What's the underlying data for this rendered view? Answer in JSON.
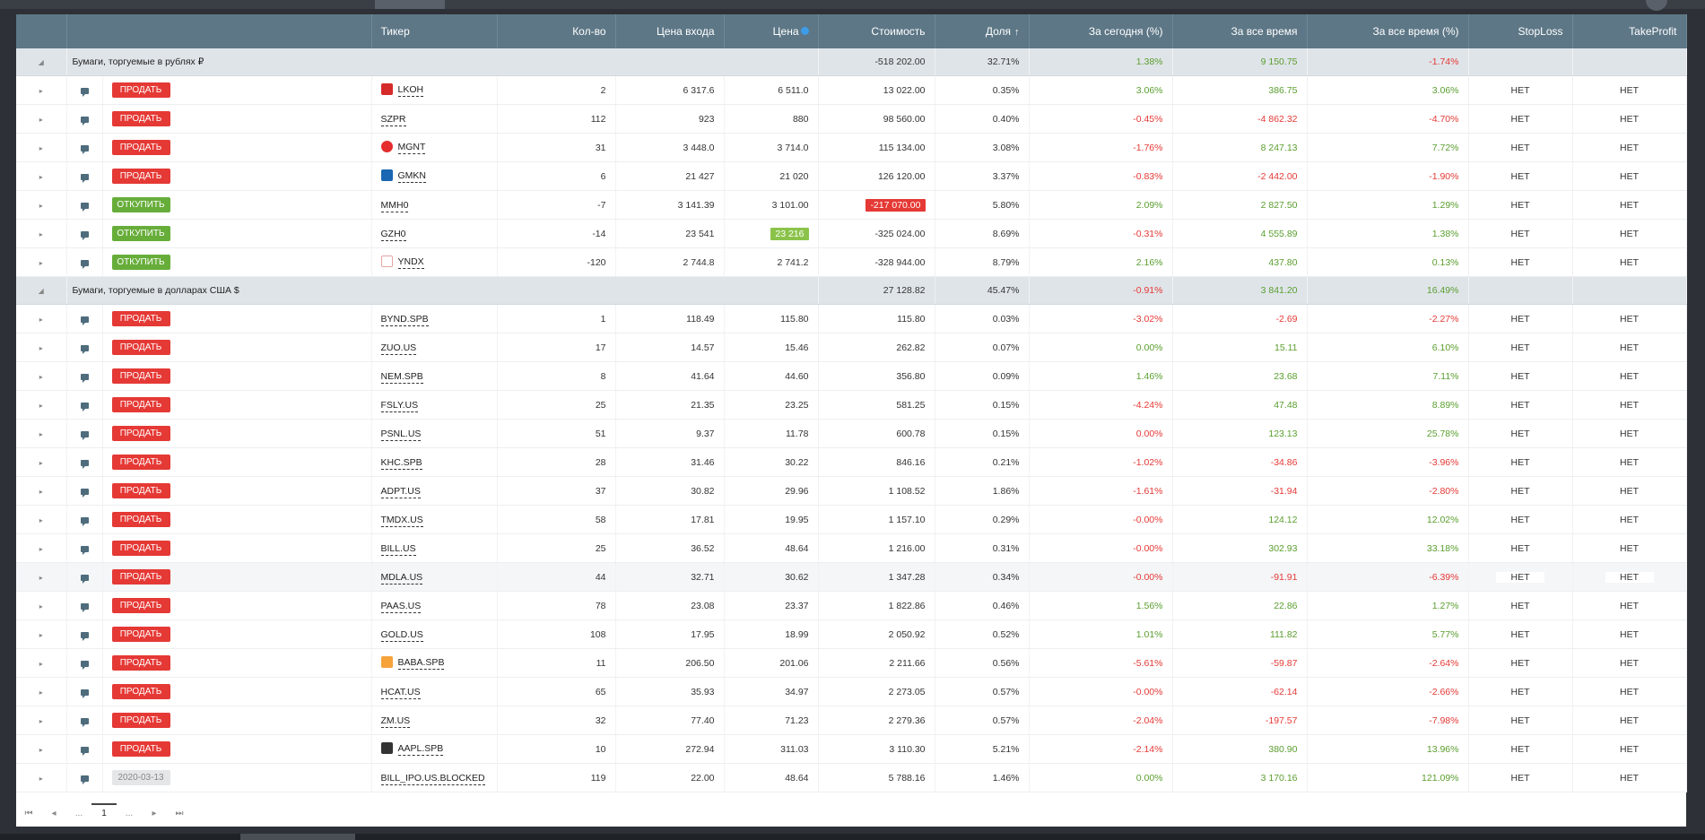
{
  "columns": {
    "ticker": "Тикер",
    "qty": "Кол-во",
    "entry_price": "Цена входа",
    "price": "Цена",
    "value": "Стоимость",
    "share": "Доля",
    "today": "За сегодня (%)",
    "all_time": "За все время",
    "all_time_pct": "За все время (%)",
    "stop_loss": "StopLoss",
    "take_profit": "TakeProfit"
  },
  "groups": [
    {
      "name": "Бумаги, торгуемые в рублях ₽",
      "value": "-518 202.00",
      "share": "32.71%",
      "today": "1.38%",
      "all_time": "9 150.75",
      "all_time_pct": "-1.74%",
      "today_sign": "pos",
      "all_time_sign": "pos",
      "all_time_pct_sign": "neg",
      "rows": [
        {
          "action": "ПРОДАТЬ",
          "action_type": "sell",
          "logo": "lkoh",
          "ticker": "LKOH",
          "qty": "2",
          "entry": "6 317.6",
          "price": "6 511.0",
          "value": "13 022.00",
          "share": "0.35%",
          "today": "3.06%",
          "all_time": "386.75",
          "all_time_pct": "3.06%",
          "today_sign": "pos",
          "all_time_sign": "pos",
          "all_time_pct_sign": "pos",
          "sl": "НЕТ",
          "tp": "НЕТ"
        },
        {
          "action": "ПРОДАТЬ",
          "action_type": "sell",
          "logo": "",
          "ticker": "SZPR",
          "qty": "112",
          "entry": "923",
          "price": "880",
          "value": "98 560.00",
          "share": "0.40%",
          "today": "-0.45%",
          "all_time": "-4 862.32",
          "all_time_pct": "-4.70%",
          "today_sign": "neg",
          "all_time_sign": "neg",
          "all_time_pct_sign": "neg",
          "sl": "НЕТ",
          "tp": "НЕТ"
        },
        {
          "action": "ПРОДАТЬ",
          "action_type": "sell",
          "logo": "mgnt",
          "ticker": "MGNT",
          "qty": "31",
          "entry": "3 448.0",
          "price": "3 714.0",
          "value": "115 134.00",
          "share": "3.08%",
          "today": "-1.76%",
          "all_time": "8 247.13",
          "all_time_pct": "7.72%",
          "today_sign": "neg",
          "all_time_sign": "pos",
          "all_time_pct_sign": "pos",
          "sl": "НЕТ",
          "tp": "НЕТ"
        },
        {
          "action": "ПРОДАТЬ",
          "action_type": "sell",
          "logo": "gmkn",
          "ticker": "GMKN",
          "qty": "6",
          "entry": "21 427",
          "price": "21 020",
          "value": "126 120.00",
          "share": "3.37%",
          "today": "-0.83%",
          "all_time": "-2 442.00",
          "all_time_pct": "-1.90%",
          "today_sign": "neg",
          "all_time_sign": "neg",
          "all_time_pct_sign": "neg",
          "sl": "НЕТ",
          "tp": "НЕТ"
        },
        {
          "action": "ОТКУПИТЬ",
          "action_type": "buy",
          "logo": "",
          "ticker": "MMH0",
          "qty": "-7",
          "entry": "3 141.39",
          "price": "3 101.00",
          "value": "-217 070.00",
          "value_badge": "red",
          "share": "5.80%",
          "today": "2.09%",
          "all_time": "2 827.50",
          "all_time_pct": "1.29%",
          "today_sign": "pos",
          "all_time_sign": "pos",
          "all_time_pct_sign": "pos",
          "sl": "НЕТ",
          "tp": "НЕТ"
        },
        {
          "action": "ОТКУПИТЬ",
          "action_type": "buy",
          "logo": "",
          "ticker": "GZH0",
          "qty": "-14",
          "entry": "23 541",
          "price": "23 216",
          "price_badge": "green",
          "value": "-325 024.00",
          "share": "8.69%",
          "today": "-0.31%",
          "all_time": "4 555.89",
          "all_time_pct": "1.38%",
          "today_sign": "neg",
          "all_time_sign": "pos",
          "all_time_pct_sign": "pos",
          "sl": "НЕТ",
          "tp": "НЕТ"
        },
        {
          "action": "ОТКУПИТЬ",
          "action_type": "buy",
          "logo": "yndx",
          "ticker": "YNDX",
          "qty": "-120",
          "entry": "2 744.8",
          "price": "2 741.2",
          "value": "-328 944.00",
          "share": "8.79%",
          "today": "2.16%",
          "all_time": "437.80",
          "all_time_pct": "0.13%",
          "today_sign": "pos",
          "all_time_sign": "pos",
          "all_time_pct_sign": "pos",
          "sl": "НЕТ",
          "tp": "НЕТ"
        }
      ]
    },
    {
      "name": "Бумаги, торгуемые в долларах США $",
      "value": "27 128.82",
      "share": "45.47%",
      "today": "-0.91%",
      "all_time": "3 841.20",
      "all_time_pct": "16.49%",
      "today_sign": "neg",
      "all_time_sign": "pos",
      "all_time_pct_sign": "pos",
      "rows": [
        {
          "action": "ПРОДАТЬ",
          "action_type": "sell",
          "logo": "",
          "ticker": "BYND.SPB",
          "qty": "1",
          "entry": "118.49",
          "price": "115.80",
          "value": "115.80",
          "share": "0.03%",
          "today": "-3.02%",
          "all_time": "-2.69",
          "all_time_pct": "-2.27%",
          "today_sign": "neg",
          "all_time_sign": "neg",
          "all_time_pct_sign": "neg",
          "sl": "НЕТ",
          "tp": "НЕТ"
        },
        {
          "action": "ПРОДАТЬ",
          "action_type": "sell",
          "logo": "",
          "ticker": "ZUO.US",
          "qty": "17",
          "entry": "14.57",
          "price": "15.46",
          "value": "262.82",
          "share": "0.07%",
          "today": "0.00%",
          "all_time": "15.11",
          "all_time_pct": "6.10%",
          "today_sign": "pos",
          "all_time_sign": "pos",
          "all_time_pct_sign": "pos",
          "sl": "НЕТ",
          "tp": "НЕТ"
        },
        {
          "action": "ПРОДАТЬ",
          "action_type": "sell",
          "logo": "",
          "ticker": "NEM.SPB",
          "qty": "8",
          "entry": "41.64",
          "price": "44.60",
          "value": "356.80",
          "share": "0.09%",
          "today": "1.46%",
          "all_time": "23.68",
          "all_time_pct": "7.11%",
          "today_sign": "pos",
          "all_time_sign": "pos",
          "all_time_pct_sign": "pos",
          "sl": "НЕТ",
          "tp": "НЕТ"
        },
        {
          "action": "ПРОДАТЬ",
          "action_type": "sell",
          "logo": "",
          "ticker": "FSLY.US",
          "qty": "25",
          "entry": "21.35",
          "price": "23.25",
          "value": "581.25",
          "share": "0.15%",
          "today": "-4.24%",
          "all_time": "47.48",
          "all_time_pct": "8.89%",
          "today_sign": "neg",
          "all_time_sign": "pos",
          "all_time_pct_sign": "pos",
          "sl": "НЕТ",
          "tp": "НЕТ"
        },
        {
          "action": "ПРОДАТЬ",
          "action_type": "sell",
          "logo": "",
          "ticker": "PSNL.US",
          "qty": "51",
          "entry": "9.37",
          "price": "11.78",
          "value": "600.78",
          "share": "0.15%",
          "today": "0.00%",
          "all_time": "123.13",
          "all_time_pct": "25.78%",
          "today_sign": "neg",
          "all_time_sign": "pos",
          "all_time_pct_sign": "pos",
          "sl": "НЕТ",
          "tp": "НЕТ"
        },
        {
          "action": "ПРОДАТЬ",
          "action_type": "sell",
          "logo": "",
          "ticker": "KHC.SPB",
          "qty": "28",
          "entry": "31.46",
          "price": "30.22",
          "value": "846.16",
          "share": "0.21%",
          "today": "-1.02%",
          "all_time": "-34.86",
          "all_time_pct": "-3.96%",
          "today_sign": "neg",
          "all_time_sign": "neg",
          "all_time_pct_sign": "neg",
          "sl": "НЕТ",
          "tp": "НЕТ"
        },
        {
          "action": "ПРОДАТЬ",
          "action_type": "sell",
          "logo": "",
          "ticker": "ADPT.US",
          "qty": "37",
          "entry": "30.82",
          "price": "29.96",
          "value": "1 108.52",
          "share": "1.86%",
          "today": "-1.61%",
          "all_time": "-31.94",
          "all_time_pct": "-2.80%",
          "today_sign": "neg",
          "all_time_sign": "neg",
          "all_time_pct_sign": "neg",
          "sl": "НЕТ",
          "tp": "НЕТ"
        },
        {
          "action": "ПРОДАТЬ",
          "action_type": "sell",
          "logo": "",
          "ticker": "TMDX.US",
          "qty": "58",
          "entry": "17.81",
          "price": "19.95",
          "value": "1 157.10",
          "share": "0.29%",
          "today": "-0.00%",
          "all_time": "124.12",
          "all_time_pct": "12.02%",
          "today_sign": "neg",
          "all_time_sign": "pos",
          "all_time_pct_sign": "pos",
          "sl": "НЕТ",
          "tp": "НЕТ"
        },
        {
          "action": "ПРОДАТЬ",
          "action_type": "sell",
          "logo": "",
          "ticker": "BILL.US",
          "qty": "25",
          "entry": "36.52",
          "price": "48.64",
          "value": "1 216.00",
          "share": "0.31%",
          "today": "-0.00%",
          "all_time": "302.93",
          "all_time_pct": "33.18%",
          "today_sign": "neg",
          "all_time_sign": "pos",
          "all_time_pct_sign": "pos",
          "sl": "НЕТ",
          "tp": "НЕТ"
        },
        {
          "action": "ПРОДАТЬ",
          "action_type": "sell",
          "logo": "",
          "ticker": "MDLA.US",
          "qty": "44",
          "entry": "32.71",
          "price": "30.62",
          "value": "1 347.28",
          "share": "0.34%",
          "today": "-0.00%",
          "all_time": "-91.91",
          "all_time_pct": "-6.39%",
          "today_sign": "neg",
          "all_time_sign": "neg",
          "all_time_pct_sign": "neg",
          "sl": "НЕТ",
          "tp": "НЕТ",
          "highlight": true
        },
        {
          "action": "ПРОДАТЬ",
          "action_type": "sell",
          "logo": "",
          "ticker": "PAAS.US",
          "qty": "78",
          "entry": "23.08",
          "price": "23.37",
          "value": "1 822.86",
          "share": "0.46%",
          "today": "1.56%",
          "all_time": "22.86",
          "all_time_pct": "1.27%",
          "today_sign": "pos",
          "all_time_sign": "pos",
          "all_time_pct_sign": "pos",
          "sl": "НЕТ",
          "tp": "НЕТ"
        },
        {
          "action": "ПРОДАТЬ",
          "action_type": "sell",
          "logo": "",
          "ticker": "GOLD.US",
          "qty": "108",
          "entry": "17.95",
          "price": "18.99",
          "value": "2 050.92",
          "share": "0.52%",
          "today": "1.01%",
          "all_time": "111.82",
          "all_time_pct": "5.77%",
          "today_sign": "pos",
          "all_time_sign": "pos",
          "all_time_pct_sign": "pos",
          "sl": "НЕТ",
          "tp": "НЕТ"
        },
        {
          "action": "ПРОДАТЬ",
          "action_type": "sell",
          "logo": "baba",
          "ticker": "BABA.SPB",
          "qty": "11",
          "entry": "206.50",
          "price": "201.06",
          "value": "2 211.66",
          "share": "0.56%",
          "today": "-5.61%",
          "all_time": "-59.87",
          "all_time_pct": "-2.64%",
          "today_sign": "neg",
          "all_time_sign": "neg",
          "all_time_pct_sign": "neg",
          "sl": "НЕТ",
          "tp": "НЕТ"
        },
        {
          "action": "ПРОДАТЬ",
          "action_type": "sell",
          "logo": "",
          "ticker": "HCAT.US",
          "qty": "65",
          "entry": "35.93",
          "price": "34.97",
          "value": "2 273.05",
          "share": "0.57%",
          "today": "-0.00%",
          "all_time": "-62.14",
          "all_time_pct": "-2.66%",
          "today_sign": "neg",
          "all_time_sign": "neg",
          "all_time_pct_sign": "neg",
          "sl": "НЕТ",
          "tp": "НЕТ"
        },
        {
          "action": "ПРОДАТЬ",
          "action_type": "sell",
          "logo": "",
          "ticker": "ZM.US",
          "qty": "32",
          "entry": "77.40",
          "price": "71.23",
          "value": "2 279.36",
          "share": "0.57%",
          "today": "-2.04%",
          "all_time": "-197.57",
          "all_time_pct": "-7.98%",
          "today_sign": "neg",
          "all_time_sign": "neg",
          "all_time_pct_sign": "neg",
          "sl": "НЕТ",
          "tp": "НЕТ"
        },
        {
          "action": "ПРОДАТЬ",
          "action_type": "sell",
          "logo": "aapl",
          "ticker": "AAPL.SPB",
          "qty": "10",
          "entry": "272.94",
          "price": "311.03",
          "value": "3 110.30",
          "share": "5.21%",
          "today": "-2.14%",
          "all_time": "380.90",
          "all_time_pct": "13.96%",
          "today_sign": "neg",
          "all_time_sign": "pos",
          "all_time_pct_sign": "pos",
          "sl": "НЕТ",
          "tp": "НЕТ"
        },
        {
          "action": "2020-03-13",
          "action_type": "date",
          "logo": "",
          "ticker": "BILL_IPO.US.BLOCKED",
          "qty": "119",
          "entry": "22.00",
          "price": "48.64",
          "value": "5 788.16",
          "share": "1.46%",
          "today": "0.00%",
          "all_time": "3 170.16",
          "all_time_pct": "121.09%",
          "today_sign": "pos",
          "all_time_sign": "pos",
          "all_time_pct_sign": "pos",
          "sl": "НЕТ",
          "tp": "НЕТ"
        }
      ]
    }
  ],
  "pager": {
    "first": "⏮",
    "prev": "◂",
    "ellipsis_left": "...",
    "current": "1",
    "ellipsis_right": "...",
    "next": "▸",
    "last": "⏭"
  }
}
